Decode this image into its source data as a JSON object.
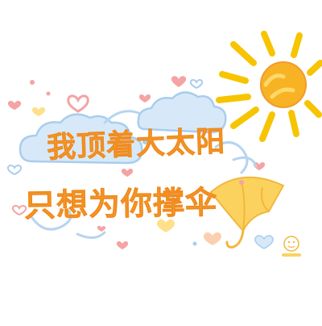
{
  "artwork": {
    "line1": "我顶着大太阳",
    "line2": "只想为你撑伞",
    "palette": {
      "text": "#f39a2c",
      "sun": "#f7b324",
      "sun_rays": "#f7c400",
      "cloud": "#d7e9f8",
      "cloud_outline": "#a9cdee",
      "umbrella": "#fbd25e",
      "heart_pink": "#f5a3a3",
      "heart_yellow": "#ffe08a",
      "heart_blue": "#a9cdee",
      "swirl_blue": "#b7d4f1"
    },
    "decorations": [
      "sun-icon",
      "cloud-icon",
      "umbrella-icon",
      "heart-icon",
      "swirl",
      "dot"
    ],
    "stamp": "oval-stamp-logo"
  }
}
